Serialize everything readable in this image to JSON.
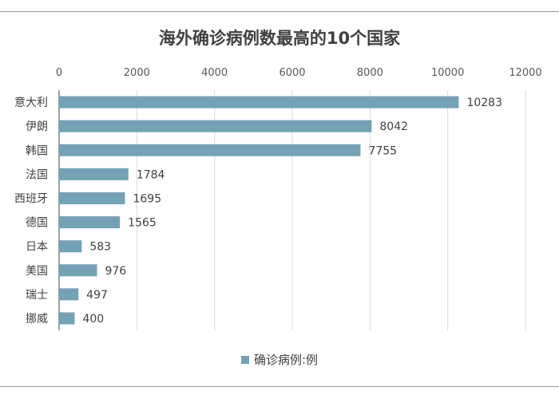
{
  "chart_data": {
    "type": "bar",
    "orientation": "horizontal",
    "title": "海外确诊病例数最高的10个国家",
    "categories": [
      "意大利",
      "伊朗",
      "韩国",
      "法国",
      "西班牙",
      "德国",
      "日本",
      "美国",
      "瑞士",
      "挪威"
    ],
    "series": [
      {
        "name": "确诊病例:例",
        "values": [
          10283,
          8042,
          7755,
          1784,
          1695,
          1565,
          583,
          976,
          497,
          400
        ],
        "color": "#75a1b4"
      }
    ],
    "x_ticks": [
      "0",
      "2000",
      "4000",
      "6000",
      "8000",
      "10000",
      "12000"
    ],
    "xlim": [
      0,
      12000
    ],
    "x_axis_position": "top",
    "data_labels": [
      "10283",
      "8042",
      "7755",
      "1784",
      "1695",
      "1565",
      "583",
      "976",
      "497",
      "400"
    ],
    "grid": true,
    "legend_position": "bottom"
  }
}
